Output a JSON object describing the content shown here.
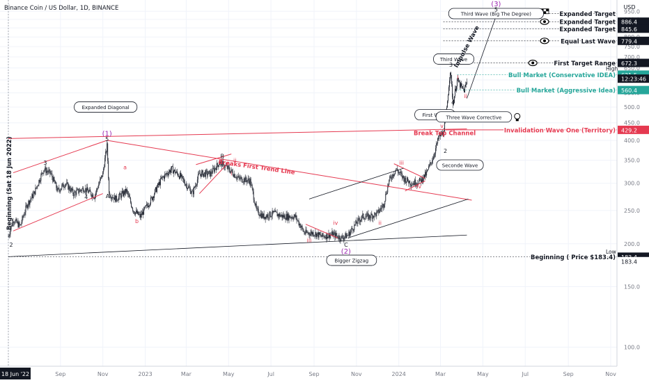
{
  "header": {
    "symbol_title": "Binance Coin / US Dollar, 1D, BINANCE",
    "currency": "USD"
  },
  "colors": {
    "bull": "#26a69a",
    "bear": "#ef5350",
    "red_line": "#e53950",
    "dark_line": "#404040",
    "wave_purple": "#9c27b0",
    "grid": "#f0f3fa",
    "text": "#131722"
  },
  "chart_data": {
    "type": "candlestick",
    "title": "Binance Coin / US Dollar, 1D, BINANCE",
    "x_axis": {
      "type": "date",
      "range": [
        "2022-06-18",
        "2024-11-10"
      ],
      "tick_labels": [
        {
          "date": "2022-06-18",
          "label": "18 Jun '22",
          "highlight": true
        },
        {
          "date": "2022-09-01",
          "label": "Sep"
        },
        {
          "date": "2022-11-01",
          "label": "Nov"
        },
        {
          "date": "2023-01-01",
          "label": "2023"
        },
        {
          "date": "2023-03-01",
          "label": "Mar"
        },
        {
          "date": "2023-05-01",
          "label": "May"
        },
        {
          "date": "2023-07-01",
          "label": "Jul"
        },
        {
          "date": "2023-09-01",
          "label": "Sep"
        },
        {
          "date": "2023-11-01",
          "label": "Nov"
        },
        {
          "date": "2024-01-01",
          "label": "2024"
        },
        {
          "date": "2024-03-01",
          "label": "Mar"
        },
        {
          "date": "2024-05-01",
          "label": "May"
        },
        {
          "date": "2024-07-01",
          "label": "Jul"
        },
        {
          "date": "2024-09-01",
          "label": "Sep"
        },
        {
          "date": "2024-11-01",
          "label": "Nov"
        }
      ]
    },
    "y_axis": {
      "scale": "log",
      "range": [
        88,
        1025
      ],
      "ticks": [
        100,
        150,
        200,
        250,
        300,
        350,
        400,
        450,
        500,
        550,
        600,
        650,
        700,
        750,
        800,
        850,
        900,
        950
      ]
    },
    "price_path": [
      [
        "2022-06-18",
        210
      ],
      [
        "2022-06-25",
        235
      ],
      [
        "2022-07-05",
        225
      ],
      [
        "2022-07-15",
        260
      ],
      [
        "2022-07-25",
        280
      ],
      [
        "2022-08-08",
        330
      ],
      [
        "2022-08-18",
        320
      ],
      [
        "2022-08-28",
        285
      ],
      [
        "2022-09-08",
        300
      ],
      [
        "2022-09-20",
        280
      ],
      [
        "2022-10-05",
        290
      ],
      [
        "2022-10-20",
        275
      ],
      [
        "2022-11-01",
        320
      ],
      [
        "2022-11-07",
        385
      ],
      [
        "2022-11-10",
        280
      ],
      [
        "2022-11-20",
        270
      ],
      [
        "2022-12-05",
        285
      ],
      [
        "2022-12-15",
        250
      ],
      [
        "2022-12-25",
        240
      ],
      [
        "2023-01-10",
        270
      ],
      [
        "2023-01-25",
        310
      ],
      [
        "2023-02-08",
        330
      ],
      [
        "2023-02-20",
        315
      ],
      [
        "2023-03-10",
        280
      ],
      [
        "2023-03-20",
        320
      ],
      [
        "2023-04-05",
        320
      ],
      [
        "2023-04-18",
        345
      ],
      [
        "2023-05-01",
        330
      ],
      [
        "2023-05-15",
        310
      ],
      [
        "2023-06-01",
        305
      ],
      [
        "2023-06-10",
        250
      ],
      [
        "2023-06-20",
        240
      ],
      [
        "2023-07-05",
        245
      ],
      [
        "2023-07-20",
        240
      ],
      [
        "2023-08-05",
        240
      ],
      [
        "2023-08-18",
        215
      ],
      [
        "2023-09-01",
        215
      ],
      [
        "2023-09-12",
        210
      ],
      [
        "2023-09-28",
        213
      ],
      [
        "2023-10-10",
        208
      ],
      [
        "2023-10-20",
        212
      ],
      [
        "2023-11-01",
        230
      ],
      [
        "2023-11-10",
        240
      ],
      [
        "2023-11-20",
        240
      ],
      [
        "2023-12-01",
        245
      ],
      [
        "2023-12-10",
        260
      ],
      [
        "2023-12-18",
        305
      ],
      [
        "2023-12-28",
        330
      ],
      [
        "2024-01-08",
        310
      ],
      [
        "2024-01-20",
        300
      ],
      [
        "2024-02-01",
        305
      ],
      [
        "2024-02-10",
        320
      ],
      [
        "2024-02-20",
        360
      ],
      [
        "2024-02-28",
        410
      ],
      [
        "2024-03-05",
        420
      ],
      [
        "2024-03-10",
        490
      ],
      [
        "2024-03-15",
        640
      ],
      [
        "2024-03-19",
        510
      ],
      [
        "2024-03-25",
        600
      ],
      [
        "2024-03-31",
        570
      ],
      [
        "2024-04-04",
        560
      ],
      [
        "2024-04-08",
        590
      ]
    ],
    "price_scale_labels": [
      {
        "price": 886.4,
        "text": "886.4",
        "style": "dark"
      },
      {
        "price": 845.6,
        "text": "845.6",
        "style": "dark"
      },
      {
        "price": 779.4,
        "text": "779.4",
        "style": "dark"
      },
      {
        "price": 672.3,
        "text": "672.3",
        "style": "dark"
      },
      {
        "price": 621.5,
        "text": "621.5",
        "style": "green"
      },
      {
        "price": 605,
        "text": "12:23:46",
        "style": "dark"
      },
      {
        "price": 560.4,
        "text": "560.4",
        "style": "green"
      },
      {
        "price": 429.2,
        "text": "429.2",
        "style": "red"
      },
      {
        "price": 183.4,
        "text": "183.4",
        "style": "dark"
      },
      {
        "price": 178,
        "text": "183.4",
        "style": "plain"
      }
    ],
    "scale_side_text": [
      {
        "price": 648,
        "text": "High"
      },
      {
        "price": 190,
        "text": "Low"
      }
    ],
    "levels": [
      {
        "label": "Expanded Target",
        "price": 935,
        "color": "dark",
        "start": "2024-05-20",
        "icon": "flag-icon"
      },
      {
        "label": "Expanded Target",
        "price": 886.4,
        "color": "dark",
        "start": "2024-03-05",
        "icon": "eye-icon"
      },
      {
        "label": "Expanded Target",
        "price": 845.6,
        "color": "dark",
        "start": "2024-03-05",
        "icon": ""
      },
      {
        "label": "Equal Last Wave",
        "price": 779.4,
        "color": "dark",
        "start": "2024-03-05",
        "icon": "eye-icon"
      },
      {
        "label": "First Target Range",
        "price": 672.3,
        "color": "dark",
        "start": "2024-03-05",
        "icon": "eye-icon"
      },
      {
        "label": "Bull Market (Conservative IDEA)",
        "price": 621.5,
        "color": "green",
        "start": "2024-03-25",
        "icon": ""
      },
      {
        "label": "Bull Market (Aggressive Idea)",
        "price": 560.4,
        "color": "green",
        "start": "2024-03-25",
        "icon": ""
      },
      {
        "label": "Invalidation Wave One (Territory)",
        "price": 429.2,
        "color": "red",
        "start": "2024-03-08",
        "icon": ""
      },
      {
        "label": "Beginning ( Price $183.4)",
        "price": 183.4,
        "color": "dark",
        "start": "2022-06-18",
        "icon": ""
      }
    ],
    "text_annotations": [
      {
        "text": "Breaks First Trend Line",
        "date": "2023-06-10",
        "price": 330,
        "color": "red",
        "angle": 8
      },
      {
        "text": "Break Top Channel",
        "date": "2024-03-07",
        "price": 414,
        "color": "red",
        "angle": 0
      },
      {
        "text": "Impulse Wave",
        "date": "2024-04-10",
        "price": 745,
        "color": "dark",
        "angle": -62
      },
      {
        "text": "Beginning (Sat 18 Jun 2022)",
        "date": "2022-06-22",
        "price": 300,
        "color": "dark",
        "angle": -90
      }
    ],
    "callouts": [
      {
        "text": "Expanded Diagonal",
        "date": "2022-11-05",
        "price": 500
      },
      {
        "text": "Bigger Zigzag",
        "date": "2023-10-25",
        "price": 179
      },
      {
        "text": "First Wave",
        "date": "2024-02-22",
        "price": 475
      },
      {
        "text": "Three Wave Corrective",
        "date": "2024-04-18",
        "price": 468
      },
      {
        "text": "Seconde Wave",
        "date": "2024-03-29",
        "price": 339
      },
      {
        "text": "Third Wave",
        "date": "2024-03-20",
        "price": 690
      },
      {
        "text": "Third Wave (Big The Degree)",
        "date": "2024-05-20",
        "price": 936
      }
    ],
    "wave_labels": [
      {
        "text": "(1)",
        "date": "2022-11-07",
        "price": 412,
        "color": "purple"
      },
      {
        "text": "(2)",
        "date": "2023-10-17",
        "price": 187,
        "color": "purple"
      },
      {
        "text": "(3)",
        "date": "2024-05-20",
        "price": 983,
        "color": "purple"
      },
      {
        "text": "2",
        "date": "2022-06-22",
        "price": 196,
        "color": "dark"
      },
      {
        "text": "3",
        "date": "2022-08-10",
        "price": 340,
        "color": "dark"
      },
      {
        "text": "4",
        "date": "2022-10-08",
        "price": 270,
        "color": "dark"
      },
      {
        "text": "5",
        "date": "2022-11-07",
        "price": 398,
        "color": "dark"
      },
      {
        "text": "A",
        "date": "2022-11-08",
        "price": 272,
        "color": "dark"
      },
      {
        "text": "B",
        "date": "2023-04-22",
        "price": 355,
        "color": "dark"
      },
      {
        "text": "C",
        "date": "2023-10-17",
        "price": 196,
        "color": "dark"
      },
      {
        "text": "b",
        "date": "2022-12-20",
        "price": 230,
        "color": "red"
      },
      {
        "text": "a",
        "date": "2022-12-03",
        "price": 330,
        "color": "red"
      },
      {
        "text": "ii",
        "date": "2023-05-10",
        "price": 345,
        "color": "red"
      },
      {
        "text": "i",
        "date": "2023-05-05",
        "price": 316,
        "color": "red"
      },
      {
        "text": "iii",
        "date": "2023-08-25",
        "price": 202,
        "color": "red"
      },
      {
        "text": "iv",
        "date": "2023-10-02",
        "price": 227,
        "color": "red"
      },
      {
        "text": "ii",
        "date": "2023-12-05",
        "price": 227,
        "color": "red"
      },
      {
        "text": "iii",
        "date": "2024-01-05",
        "price": 340,
        "color": "red"
      },
      {
        "text": "iv",
        "date": "2024-01-30",
        "price": 290,
        "color": "red"
      },
      {
        "text": "v",
        "date": "2024-03-03",
        "price": 435,
        "color": "red"
      },
      {
        "text": "2",
        "date": "2024-03-08",
        "price": 368,
        "color": "dark"
      },
      {
        "text": "3",
        "date": "2024-03-16",
        "price": 655,
        "color": "dark"
      },
      {
        "text": "4",
        "date": "2024-03-19",
        "price": 510,
        "color": "dark"
      },
      {
        "text": "i",
        "date": "2024-03-26",
        "price": 603,
        "color": "red"
      },
      {
        "text": "ii",
        "date": "2024-04-06",
        "price": 532,
        "color": "red"
      },
      {
        "text": "5",
        "date": "2024-05-20",
        "price": 950,
        "color": "dark"
      }
    ],
    "trend_lines": [
      {
        "from": [
          "2022-06-18",
          405
        ],
        "to": [
          "2024-04-08",
          432
        ],
        "color": "red"
      },
      {
        "from": [
          "2022-11-07",
          400
        ],
        "to": [
          "2024-04-15",
          268
        ],
        "color": "red"
      },
      {
        "from": [
          "2022-06-25",
          322
        ],
        "to": [
          "2022-11-07",
          400
        ],
        "color": "red"
      },
      {
        "from": [
          "2022-06-25",
          218
        ],
        "to": [
          "2022-11-01",
          280
        ],
        "color": "red"
      },
      {
        "from": [
          "2023-03-15",
          340
        ],
        "to": [
          "2023-05-05",
          365
        ],
        "color": "red"
      },
      {
        "from": [
          "2023-03-20",
          280
        ],
        "to": [
          "2023-05-01",
          345
        ],
        "color": "red"
      },
      {
        "from": [
          "2023-08-20",
          228
        ],
        "to": [
          "2023-10-05",
          208
        ],
        "color": "red"
      },
      {
        "from": [
          "2023-12-25",
          342
        ],
        "to": [
          "2024-02-08",
          310
        ],
        "color": "red"
      },
      {
        "from": [
          "2024-01-10",
          285
        ],
        "to": [
          "2024-02-08",
          305
        ],
        "color": "red"
      },
      {
        "from": [
          "2022-06-18",
          183.4
        ],
        "to": [
          "2024-04-08",
          212
        ],
        "color": "dark"
      },
      {
        "from": [
          "2023-08-25",
          270
        ],
        "to": [
          "2024-01-08",
          332
        ],
        "color": "dark"
      },
      {
        "from": [
          "2023-10-20",
          208
        ],
        "to": [
          "2024-04-10",
          270
        ],
        "color": "dark"
      },
      {
        "from": [
          "2024-04-08",
          530
        ],
        "to": [
          "2024-05-20",
          920
        ],
        "color": "dark"
      }
    ]
  }
}
